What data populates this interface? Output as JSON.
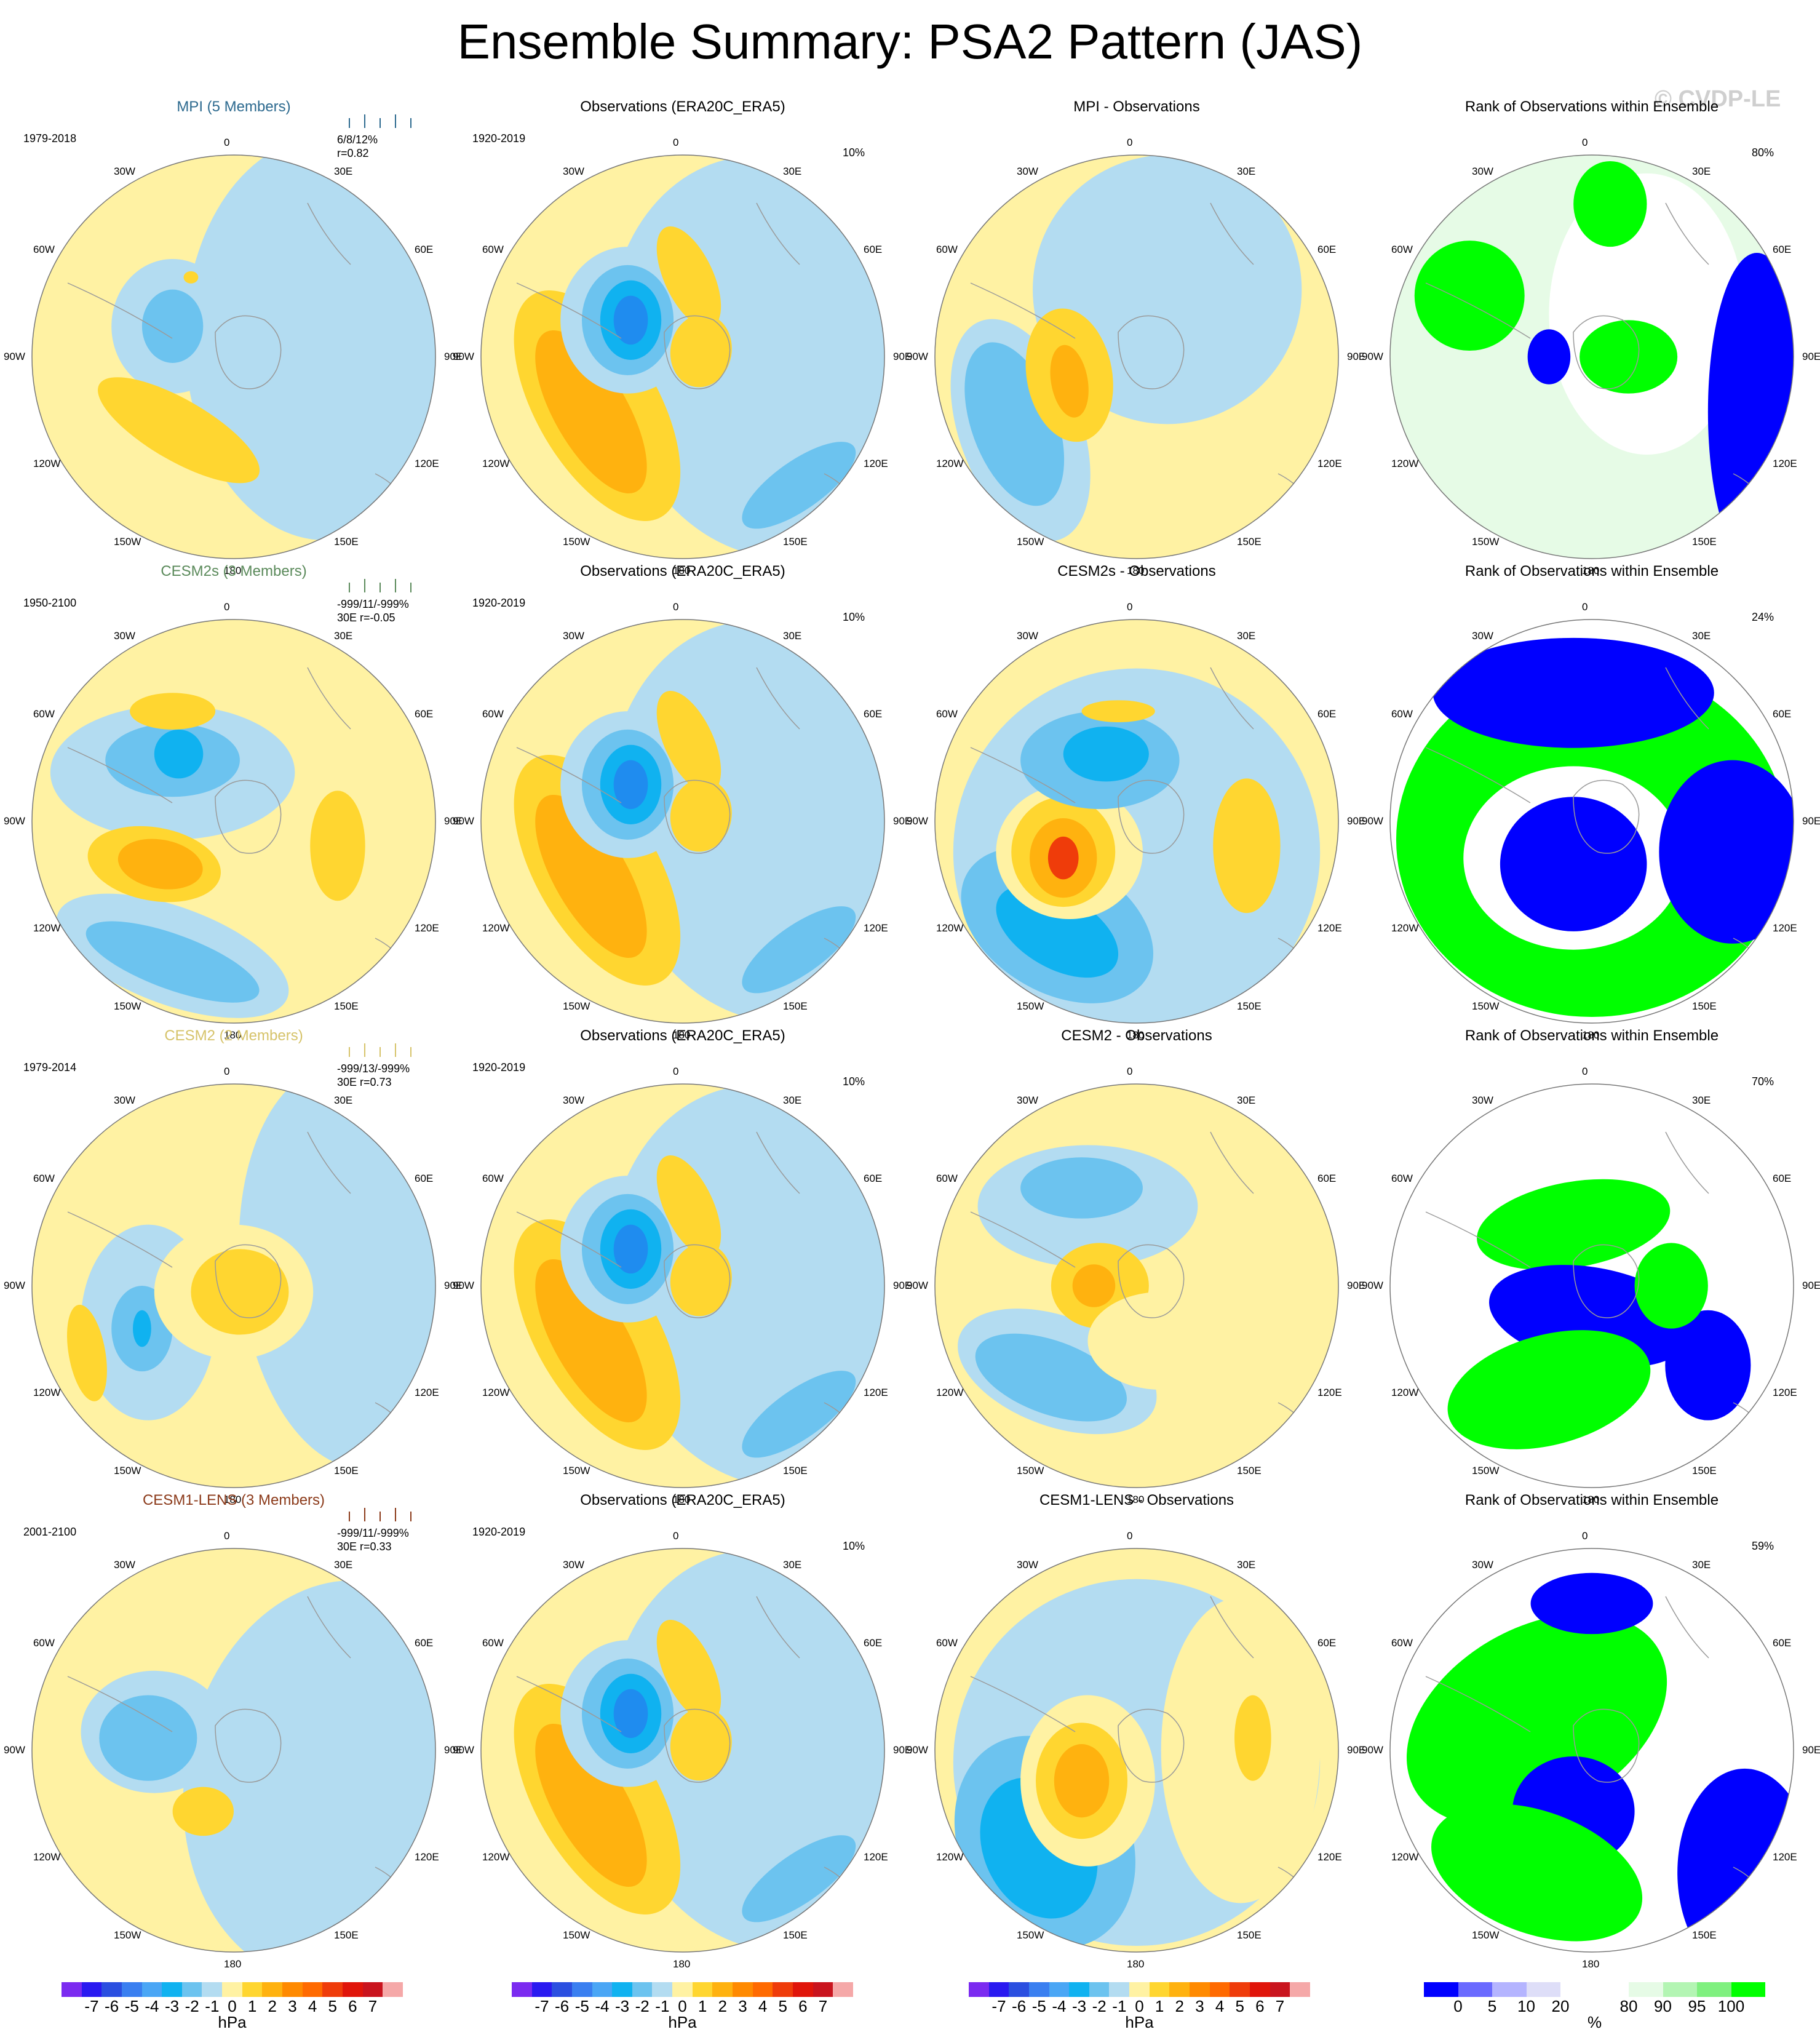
{
  "title": "Ensemble Summary: PSA2 Pattern (JAS)",
  "watermark": "© CVDP-LE",
  "palette": {
    "lb": "#b3dcf1",
    "mb": "#6cc3ef",
    "db": "#10b2f0",
    "bb": "#1f8cef",
    "ly": "#fff2a3",
    "my": "#ffd630",
    "oy": "#ffb20f",
    "or": "#ff8a00",
    "rd": "#ef3c0a",
    "grn": "#00ff00",
    "pgrn": "#e6fbe6",
    "blu": "#0000ff",
    "wht": "#ffffff"
  },
  "lon_labels": [
    "0",
    "30E",
    "60E",
    "90E",
    "120E",
    "150E",
    "180",
    "150W",
    "120W",
    "90W",
    "60W",
    "30W"
  ],
  "rows": [
    {
      "model": {
        "title": "MPI (5 Members)",
        "title_color": "#2d6a8f",
        "period": "1979-2018",
        "stats": [
          "6/8/12%",
          "r=0.82"
        ],
        "stats_prefix": "30E"
      },
      "obs": {
        "title": "Observations (ERA20C_ERA5)",
        "period": "1920-2019",
        "pct": "10%"
      },
      "diff": {
        "title": "MPI - Observations"
      },
      "rank": {
        "title": "Rank of Observations within Ensemble",
        "pct": "80%"
      }
    },
    {
      "model": {
        "title": "CESM2s (3 Members)",
        "title_color": "#5b8a5b",
        "period": "1950-2100",
        "stats": [
          "-999/11/-999%",
          "30E r=-0.05"
        ],
        "stats_prefix": ""
      },
      "obs": {
        "title": "Observations (ERA20C_ERA5)",
        "period": "1920-2019",
        "pct": "10%"
      },
      "diff": {
        "title": "CESM2s - Observations"
      },
      "rank": {
        "title": "Rank of Observations within Ensemble",
        "pct": "24%"
      }
    },
    {
      "model": {
        "title": "CESM2 (2 Members)",
        "title_color": "#d6c36a",
        "period": "1979-2014",
        "stats": [
          "-999/13/-999%",
          "30E r=0.73"
        ],
        "stats_prefix": ""
      },
      "obs": {
        "title": "Observations (ERA20C_ERA5)",
        "period": "1920-2019",
        "pct": "10%"
      },
      "diff": {
        "title": "CESM2 - Observations"
      },
      "rank": {
        "title": "Rank of Observations within Ensemble",
        "pct": "70%"
      }
    },
    {
      "model": {
        "title": "CESM1-LENS (3 Members)",
        "title_color": "#8b3a1a",
        "period": "2001-2100",
        "stats": [
          "-999/11/-999%",
          "30E r=0.33"
        ],
        "stats_prefix": ""
      },
      "obs": {
        "title": "Observations (ERA20C_ERA5)",
        "period": "1920-2019",
        "pct": "10%"
      },
      "diff": {
        "title": "CESM1-LENS - Observations"
      },
      "rank": {
        "title": "Rank of Observations within Ensemble",
        "pct": "59%"
      }
    }
  ],
  "colorbar_hpa": {
    "colors": [
      "#7b2bf0",
      "#2a1af0",
      "#2b4fe0",
      "#3a7ff0",
      "#4aa6f5",
      "#10b2f0",
      "#6cc3ef",
      "#b3dcf1",
      "#fff2a3",
      "#ffd630",
      "#ffb20f",
      "#ff8a00",
      "#ff6a00",
      "#ef3c0a",
      "#e0150a",
      "#c9141e",
      "#f5a8a8"
    ],
    "labels": [
      "-7",
      "-6",
      "-5",
      "-4",
      "-3",
      "-2",
      "-1",
      "0",
      "1",
      "2",
      "3",
      "4",
      "5",
      "6",
      "7"
    ],
    "unit": "hPa"
  },
  "colorbar_pct": {
    "colors": [
      "#0000ff",
      "#6a6aff",
      "#b4b4ff",
      "#dedef8",
      "#ffffff",
      "#ffffff",
      "#e6fbe6",
      "#b3f5b3",
      "#7ff07f",
      "#00ff00"
    ],
    "labels": [
      "0",
      "5",
      "10",
      "20",
      "80",
      "90",
      "95",
      "100"
    ],
    "unit": "%"
  }
}
